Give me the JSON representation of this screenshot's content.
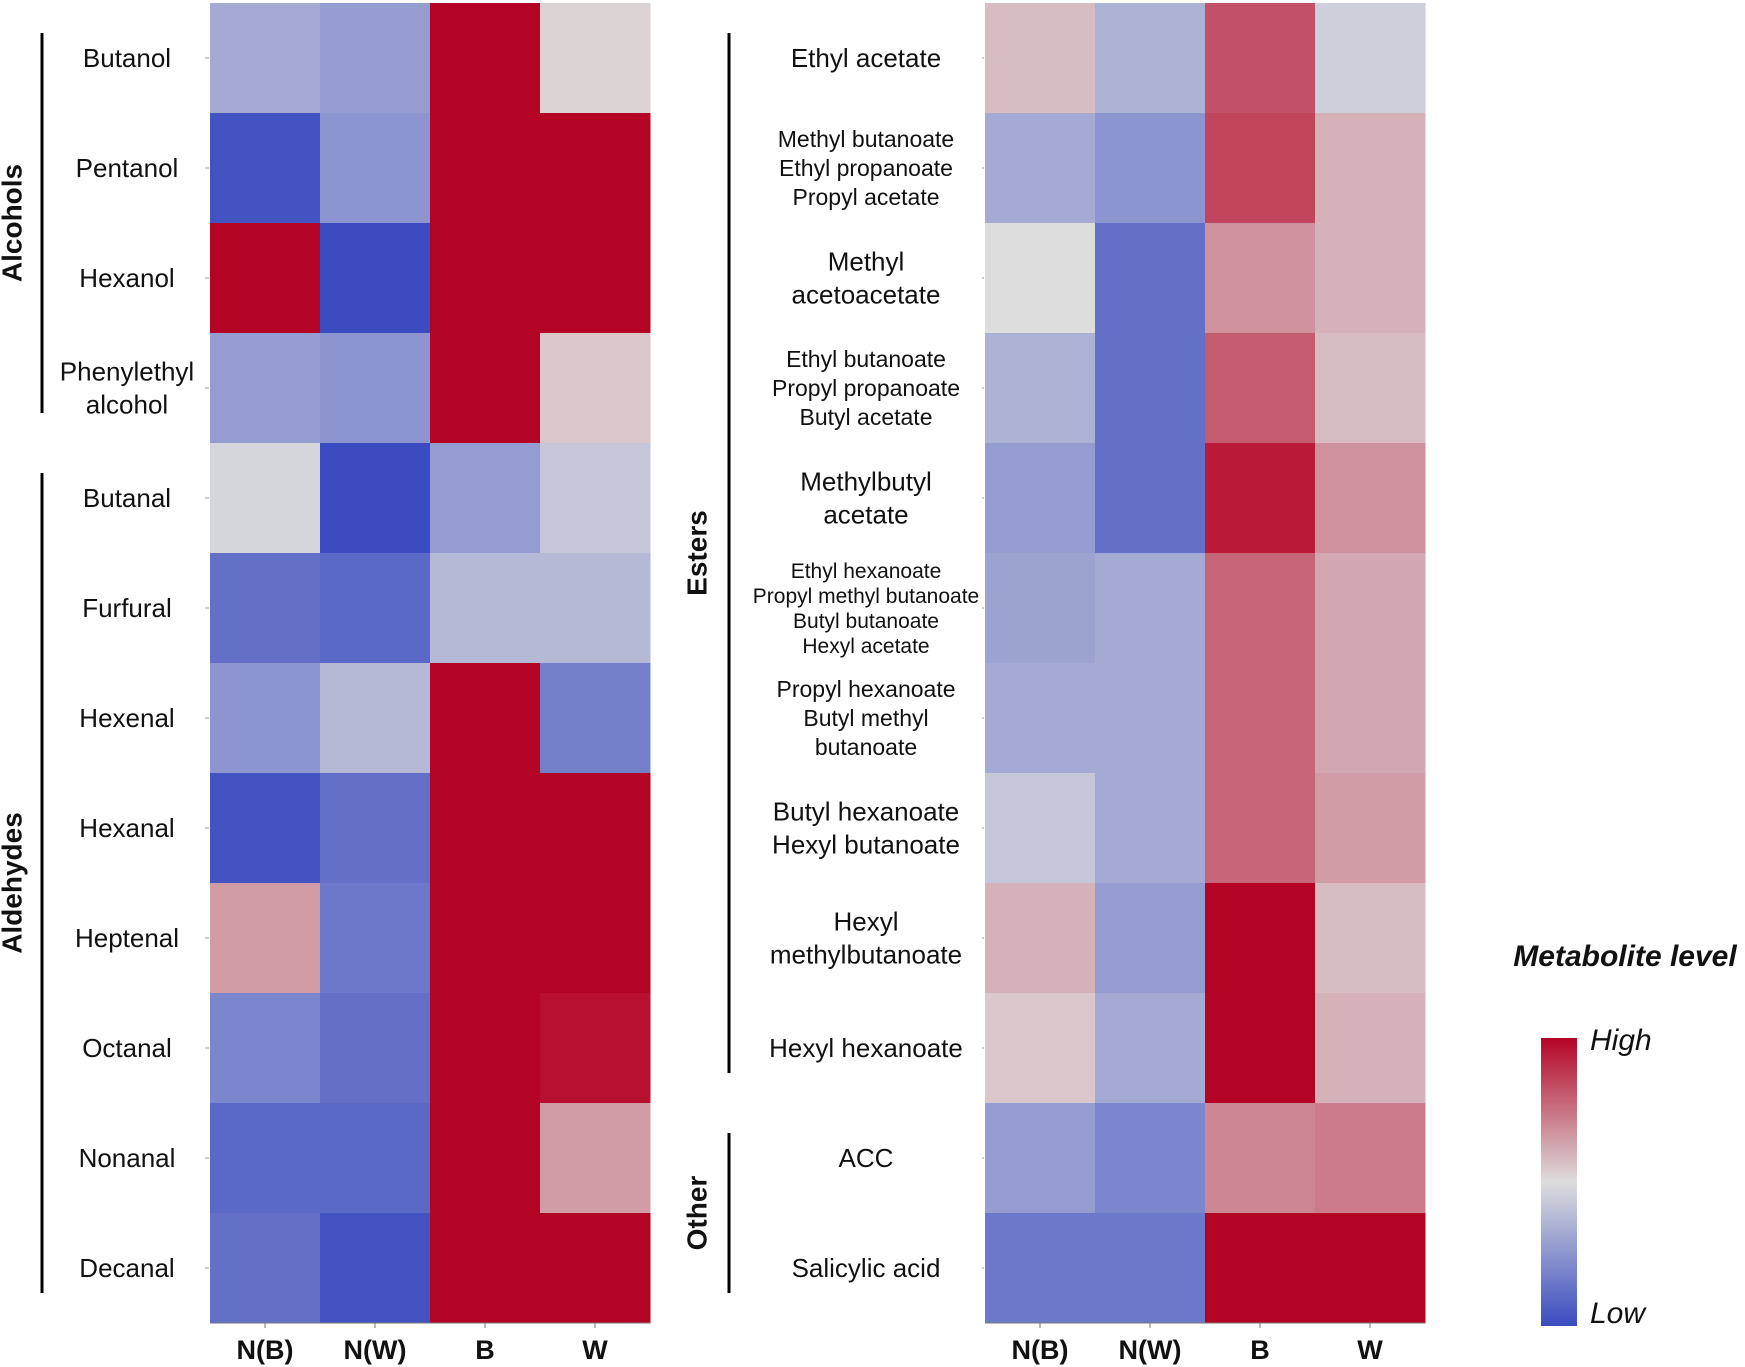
{
  "chart_data": {
    "type": "heatmap",
    "color_scale": {
      "title": "Metabolite level",
      "high_label": "High",
      "low_label": "Low",
      "low_color": "#3B4CC0",
      "mid_color": "#DDDDDD",
      "high_color": "#B40426",
      "range": [
        -1,
        1
      ]
    },
    "panels": [
      {
        "columns": [
          "N(B)",
          "N(W)",
          "B",
          "W"
        ],
        "groups": [
          {
            "label": "Alcohols",
            "start_row": 0,
            "end_row": 3
          },
          {
            "label": "Aldehydes",
            "start_row": 4,
            "end_row": 11
          }
        ],
        "rows": [
          {
            "label": [
              "Butanol"
            ],
            "values": [
              -0.35,
              -0.45,
              1.0,
              0.05
            ]
          },
          {
            "label": [
              "Pentanol"
            ],
            "values": [
              -0.95,
              -0.5,
              1.0,
              1.0
            ]
          },
          {
            "label": [
              "Hexanol"
            ],
            "values": [
              1.0,
              -1.0,
              1.0,
              1.0
            ]
          },
          {
            "label": [
              "Phenylethyl",
              "alcohol"
            ],
            "values": [
              -0.45,
              -0.5,
              1.0,
              0.1
            ]
          },
          {
            "label": [
              "Butanal"
            ],
            "values": [
              -0.05,
              -1.0,
              -0.45,
              -0.15
            ]
          },
          {
            "label": [
              "Furfural"
            ],
            "values": [
              -0.75,
              -0.8,
              -0.25,
              -0.25
            ]
          },
          {
            "label": [
              "Hexenal"
            ],
            "values": [
              -0.5,
              -0.25,
              1.0,
              -0.65
            ]
          },
          {
            "label": [
              "Hexanal"
            ],
            "values": [
              -0.95,
              -0.75,
              1.0,
              1.0
            ]
          },
          {
            "label": [
              "Heptenal"
            ],
            "values": [
              0.3,
              -0.7,
              1.0,
              1.0
            ]
          },
          {
            "label": [
              "Octanal"
            ],
            "values": [
              -0.6,
              -0.75,
              1.0,
              0.95
            ]
          },
          {
            "label": [
              "Nonanal"
            ],
            "values": [
              -0.8,
              -0.8,
              1.0,
              0.3
            ]
          },
          {
            "label": [
              "Decanal"
            ],
            "values": [
              -0.75,
              -0.95,
              1.0,
              1.0
            ]
          }
        ]
      },
      {
        "columns": [
          "N(B)",
          "N(W)",
          "B",
          "W"
        ],
        "groups": [
          {
            "label": "Esters",
            "start_row": 0,
            "end_row": 9
          },
          {
            "label": "Other",
            "start_row": 10,
            "end_row": 11
          }
        ],
        "rows": [
          {
            "label": [
              "Ethyl acetate"
            ],
            "values": [
              0.15,
              -0.3,
              0.65,
              -0.1
            ]
          },
          {
            "label": [
              "Methyl butanoate",
              "Ethyl propanoate",
              "Propyl acetate"
            ],
            "values": [
              -0.35,
              -0.5,
              0.7,
              0.2
            ]
          },
          {
            "label": [
              "Methyl",
              "acetoacetate"
            ],
            "values": [
              0.0,
              -0.75,
              0.35,
              0.2
            ]
          },
          {
            "label": [
              "Ethyl butanoate",
              "Propyl propanoate",
              "Butyl acetate"
            ],
            "values": [
              -0.3,
              -0.75,
              0.6,
              0.15
            ]
          },
          {
            "label": [
              "Methylbutyl",
              "acetate"
            ],
            "values": [
              -0.45,
              -0.75,
              0.9,
              0.35
            ]
          },
          {
            "label": [
              "Ethyl hexanoate",
              "Propyl methyl butanoate",
              "Butyl butanoate",
              "Hexyl acetate"
            ],
            "values": [
              -0.4,
              -0.35,
              0.55,
              0.25
            ]
          },
          {
            "label": [
              "Propyl hexanoate",
              "Butyl methyl",
              "butanoate"
            ],
            "values": [
              -0.35,
              -0.35,
              0.55,
              0.25
            ]
          },
          {
            "label": [
              "Butyl hexanoate",
              "Hexyl butanoate"
            ],
            "values": [
              -0.15,
              -0.35,
              0.55,
              0.3
            ]
          },
          {
            "label": [
              "Hexyl",
              "methylbutanoate"
            ],
            "values": [
              0.2,
              -0.45,
              1.0,
              0.15
            ]
          },
          {
            "label": [
              "Hexyl hexanoate"
            ],
            "values": [
              0.1,
              -0.35,
              1.0,
              0.2
            ]
          },
          {
            "label": [
              "ACC"
            ],
            "values": [
              -0.45,
              -0.6,
              0.4,
              0.45
            ]
          },
          {
            "label": [
              "Salicylic acid"
            ],
            "values": [
              -0.7,
              -0.7,
              1.0,
              1.0
            ]
          }
        ]
      }
    ]
  }
}
